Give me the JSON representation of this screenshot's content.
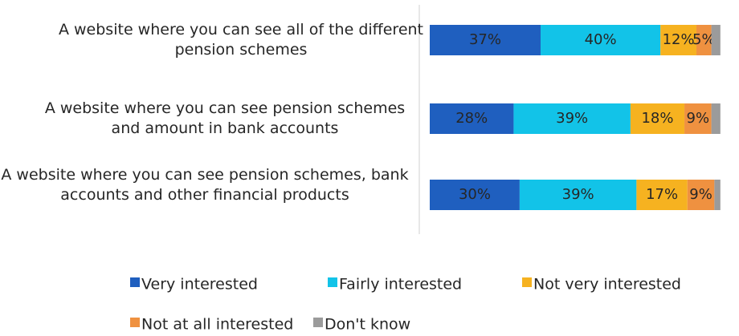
{
  "chart_data": {
    "type": "stacked-bar-horizontal",
    "categories": [
      "A website where you can see all of the different pension schemes",
      "A website where you can see pension schemes and amount in bank accounts",
      "A website where you can see pension schemes, bank accounts and other financial products"
    ],
    "series": [
      {
        "name": "Very interested",
        "color": "#1f5fbf",
        "values": [
          37,
          28,
          30
        ],
        "value_labels": [
          "37%",
          "28%",
          "30%"
        ]
      },
      {
        "name": "Fairly interested",
        "color": "#12c3e8",
        "values": [
          40,
          39,
          39
        ],
        "value_labels": [
          "40%",
          "39%",
          "39%"
        ]
      },
      {
        "name": "Not very interested",
        "color": "#f6b220",
        "values": [
          12,
          18,
          17
        ],
        "value_labels": [
          "12%",
          "18%",
          "17%"
        ]
      },
      {
        "name": "Not at all interested",
        "color": "#ef9140",
        "values": [
          5,
          9,
          9
        ],
        "value_labels": [
          "5%",
          "9%",
          "9%"
        ]
      },
      {
        "name": "Don't know",
        "color": "#9b9b9b",
        "values": [
          3,
          3,
          2
        ],
        "value_labels": [
          null,
          null,
          null
        ]
      }
    ],
    "xlim": [
      0,
      100
    ]
  }
}
